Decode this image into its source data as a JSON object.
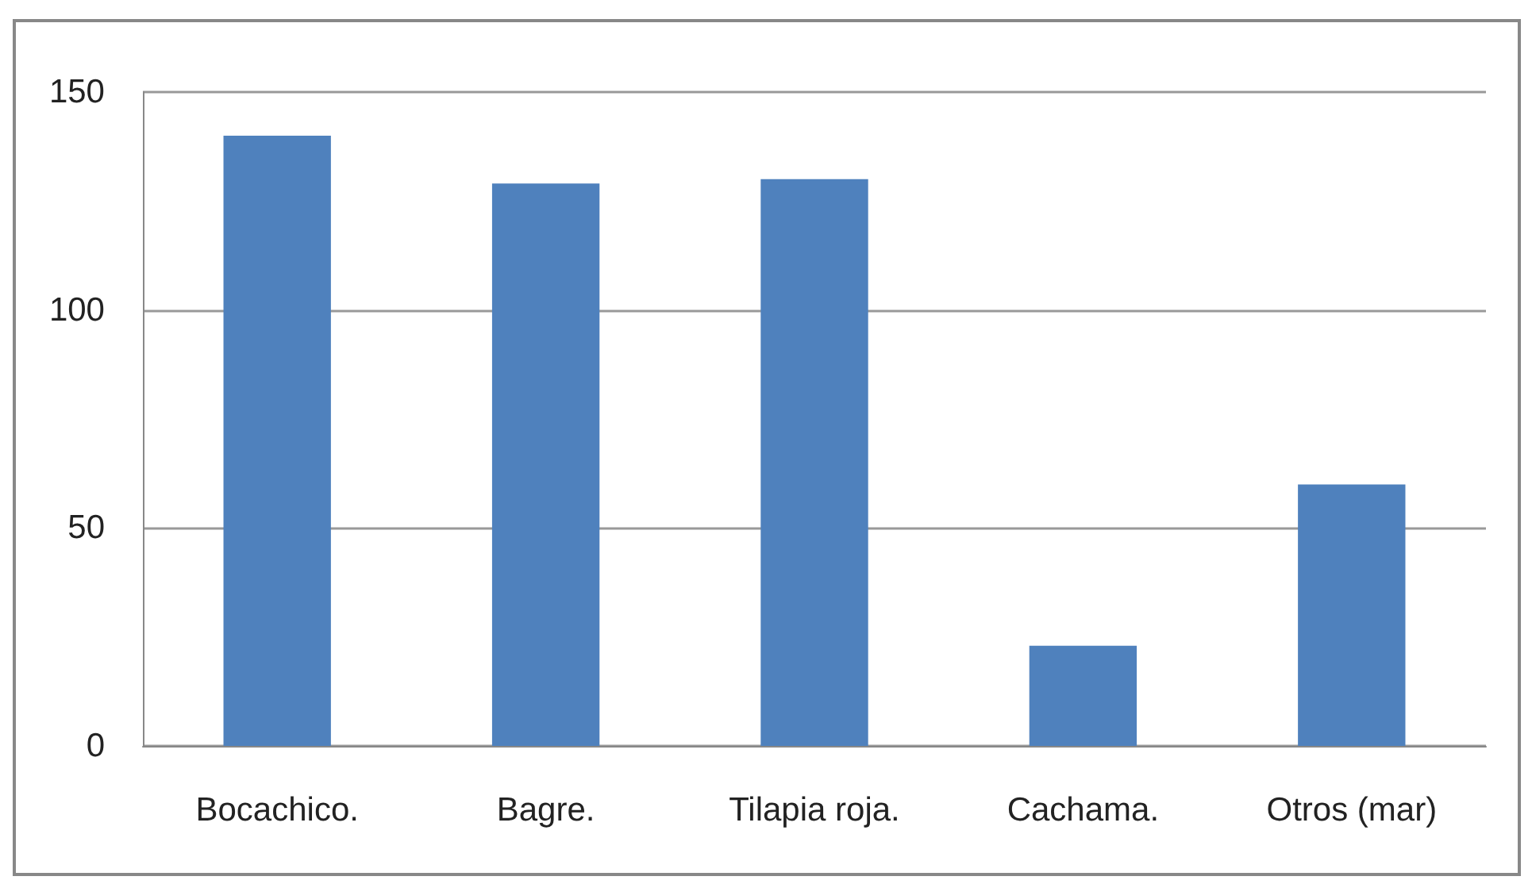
{
  "chart_data": {
    "type": "bar",
    "categories": [
      "Bocachico.",
      "Bagre.",
      "Tilapia roja.",
      "Cachama.",
      "Otros (mar)"
    ],
    "values": [
      140,
      129,
      130,
      23,
      60
    ],
    "color": "#4f81bd",
    "ylim": [
      0,
      150
    ],
    "yticks": [
      0,
      50,
      100,
      150
    ],
    "grid": "y"
  }
}
